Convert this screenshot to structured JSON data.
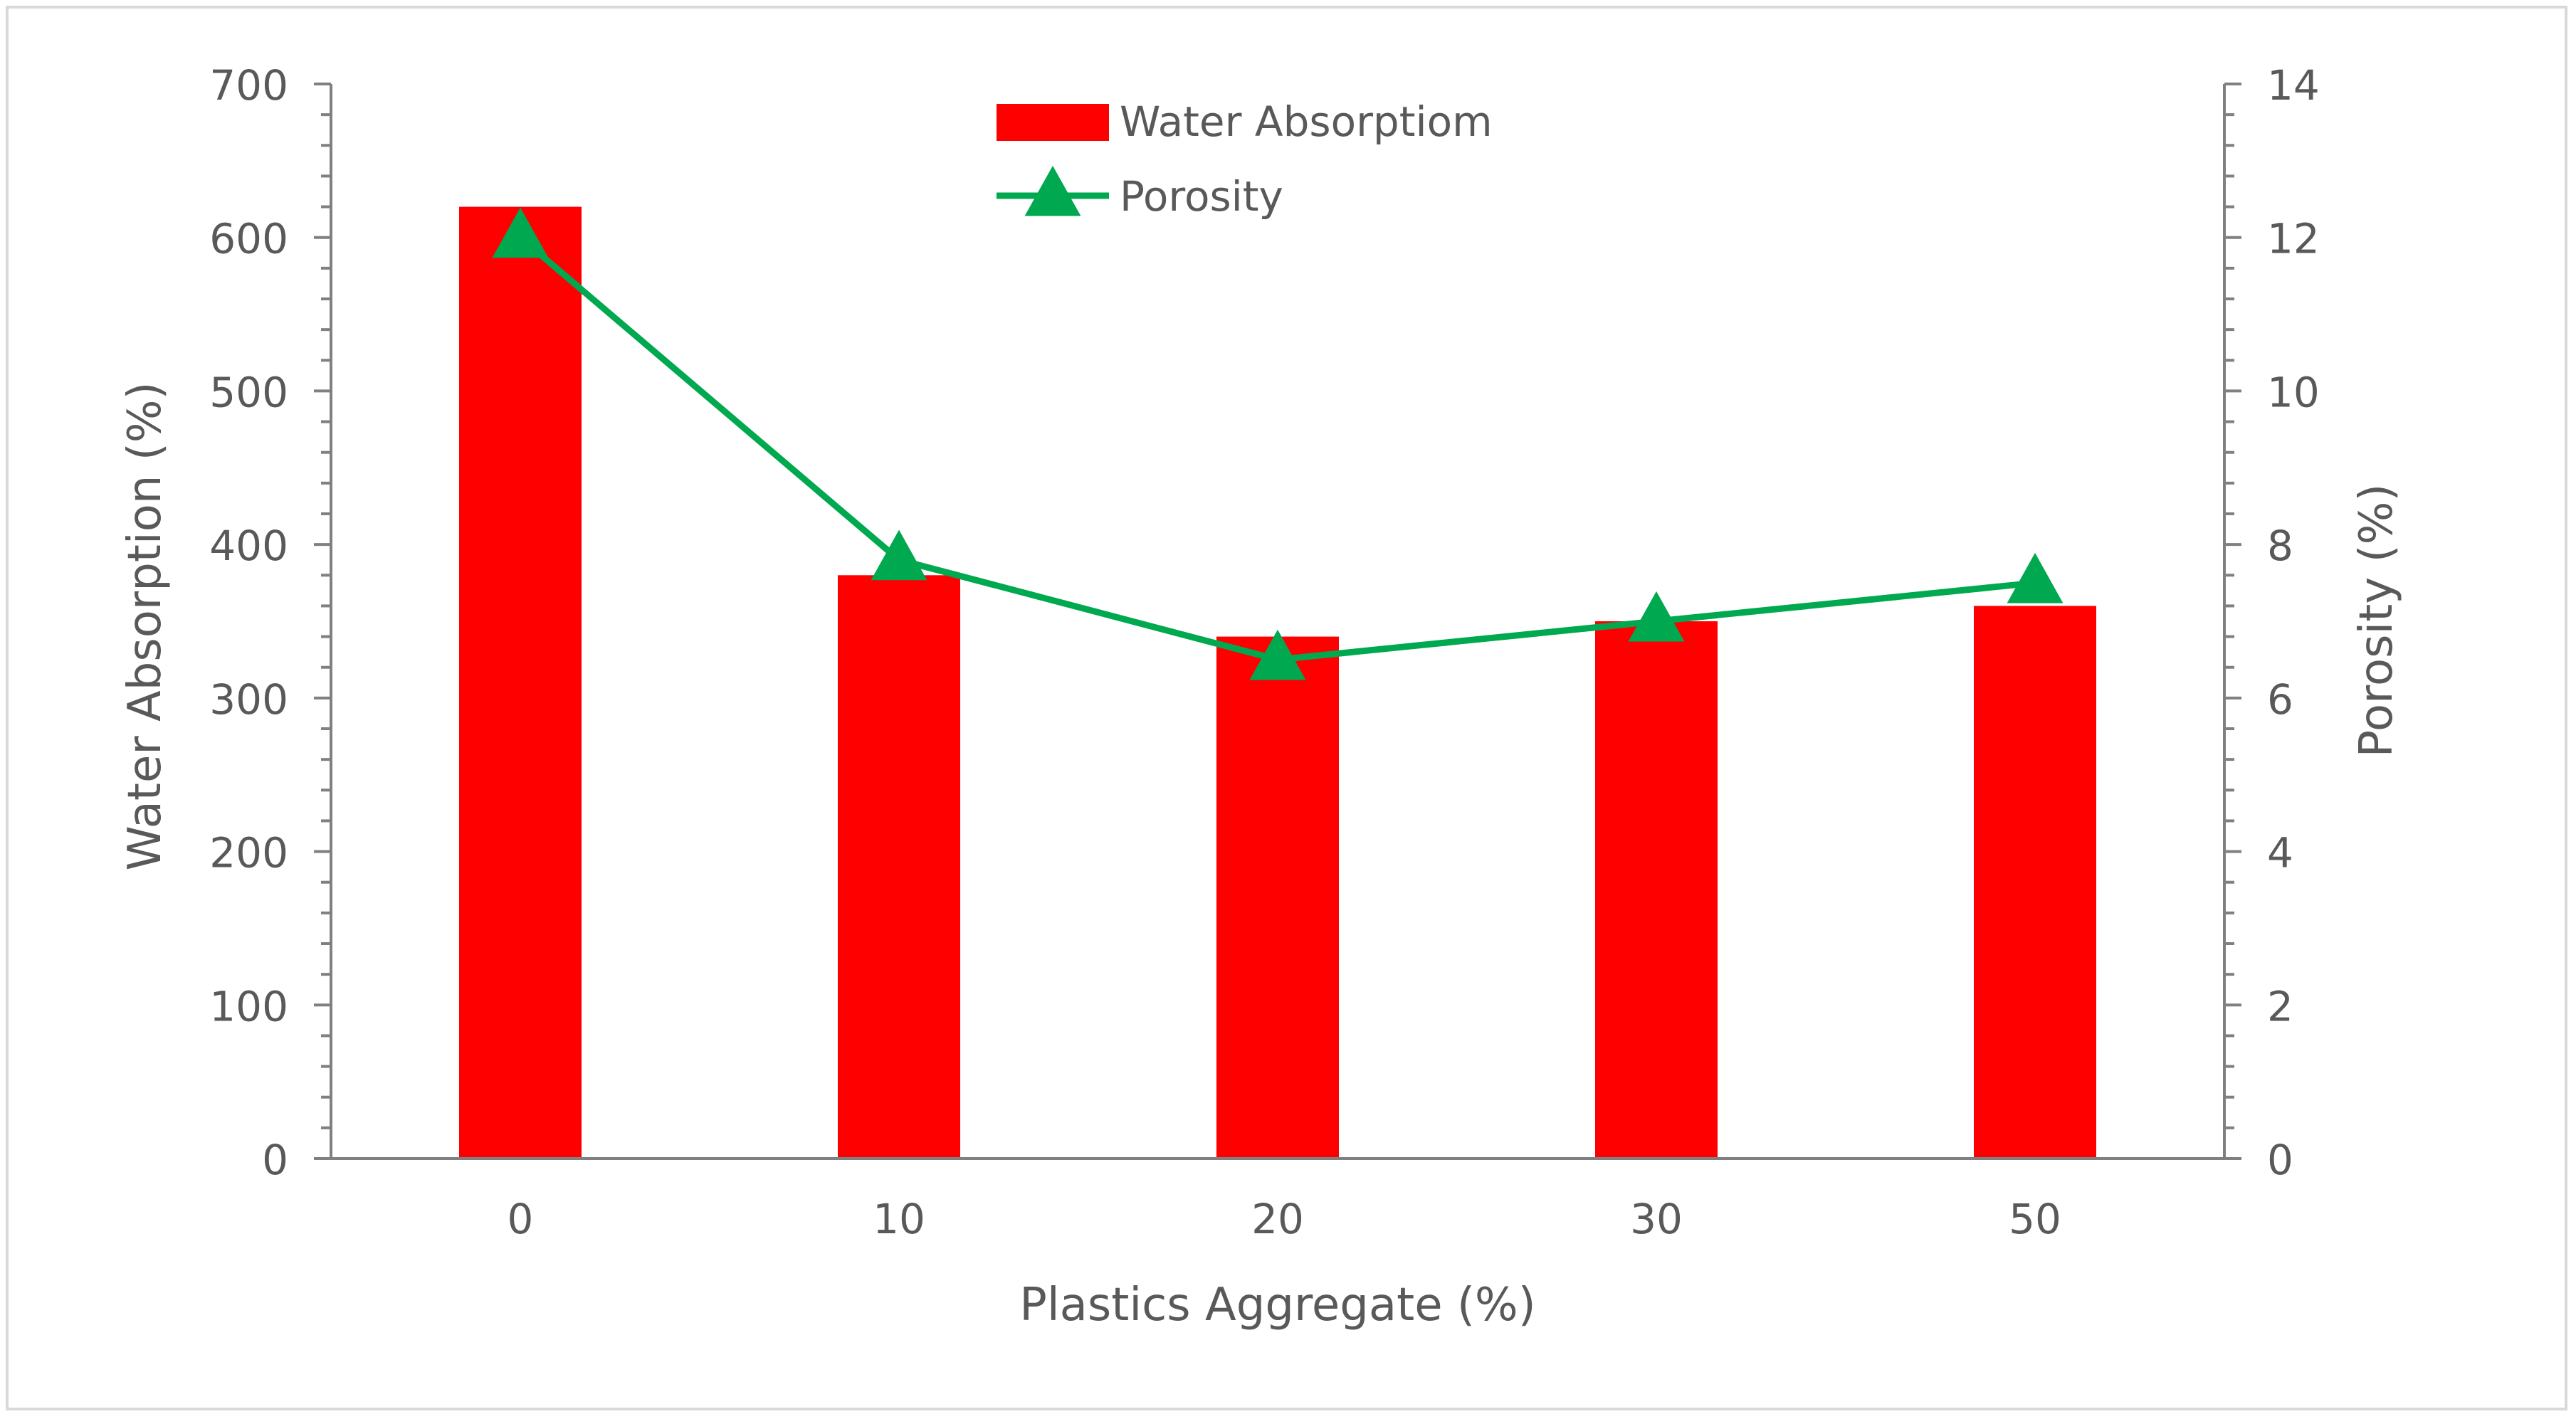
{
  "chart_data": {
    "type": "bar",
    "title": "",
    "categories": [
      "0",
      "10",
      "20",
      "30",
      "50"
    ],
    "xlabel": "Plastics Aggregate (%)",
    "ylabel": "Water Absorption (%)",
    "y2label": "Porosity (%)",
    "ylim": [
      0,
      700
    ],
    "y2lim": [
      0,
      14
    ],
    "yticks": [
      "0",
      "100",
      "200",
      "300",
      "400",
      "500",
      "600",
      "700"
    ],
    "y2ticks": [
      "0",
      "2",
      "4",
      "6",
      "8",
      "10",
      "12",
      "14"
    ],
    "series": [
      {
        "name": "Water Absorptiom",
        "type": "bar",
        "axis": "left",
        "color": "#ff0000",
        "values": [
          620,
          380,
          340,
          350,
          360
        ]
      },
      {
        "name": "Porosity",
        "type": "line",
        "axis": "right",
        "color": "#00a94f",
        "marker": "triangle",
        "values": [
          12.0,
          7.8,
          6.5,
          7.0,
          7.5
        ]
      }
    ],
    "legend_position": "top-center",
    "axis_color": "#808080",
    "text_color": "#595959"
  }
}
